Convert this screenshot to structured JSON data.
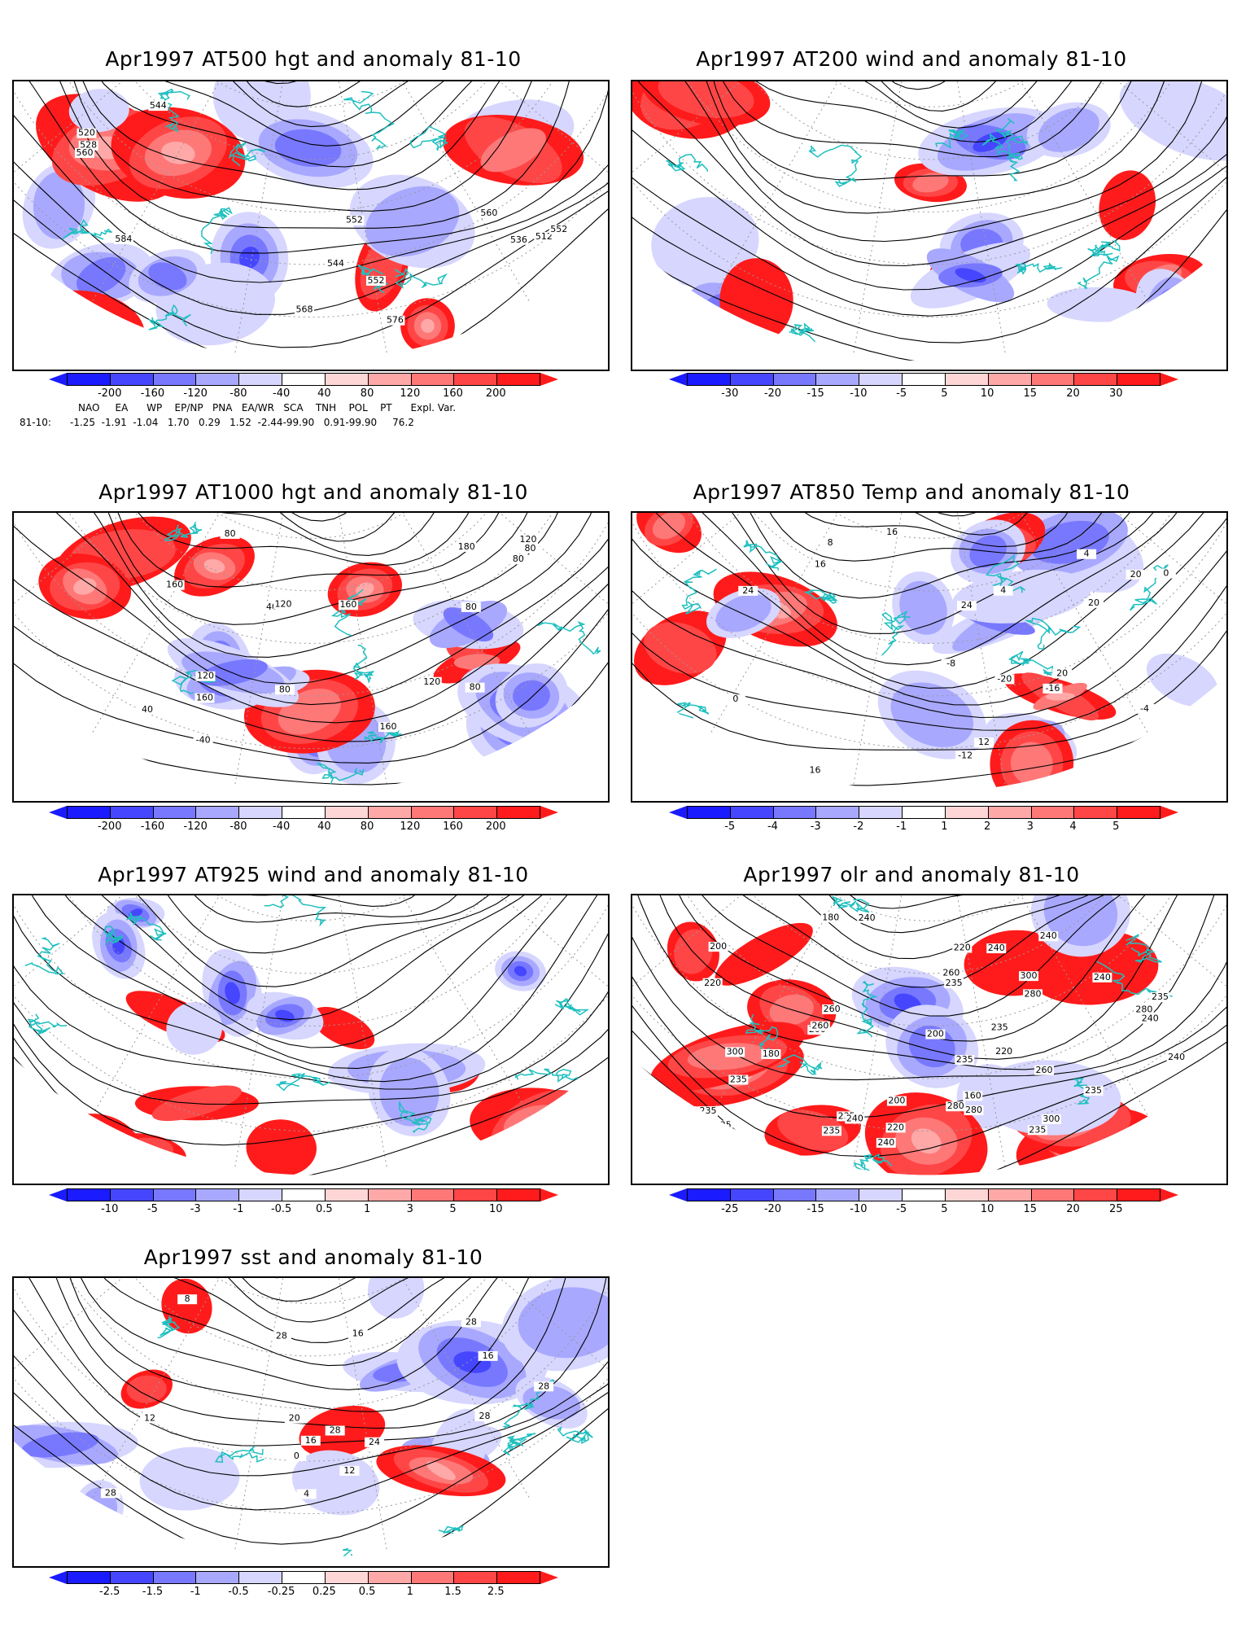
{
  "panels": [
    {
      "title": "Apr1997 AT500 hgt and anomaly 81-10",
      "contour_labels": [
        "512",
        "520",
        "528",
        "536",
        "544",
        "552",
        "560",
        "568",
        "576",
        "584",
        "544",
        "552",
        "560",
        "552"
      ],
      "colorbar": [
        "-200",
        "-160",
        "-120",
        "-80",
        "-40",
        "40",
        "80",
        "120",
        "160",
        "200"
      ]
    },
    {
      "title": "Apr1997 AT200 wind and anomaly 81-10",
      "contour_labels": [],
      "colorbar": [
        "-30",
        "-20",
        "-15",
        "-10",
        "-5",
        "5",
        "10",
        "15",
        "20",
        "30"
      ]
    },
    {
      "title": "Apr1997 AT1000 hgt and anomaly 81-10",
      "contour_labels": [
        "160",
        "180",
        "160",
        "80",
        "80",
        "120",
        "40",
        "-40",
        "80",
        "80",
        "40",
        "160",
        "120",
        "120",
        "160",
        "120",
        "80",
        "80",
        "80",
        "120"
      ],
      "colorbar": [
        "-200",
        "-160",
        "-120",
        "-80",
        "-40",
        "40",
        "80",
        "120",
        "160",
        "200"
      ]
    },
    {
      "title": "Apr1997 AT850 Temp and anomaly 81-10",
      "contour_labels": [
        "16",
        "-20",
        "-16",
        "-12",
        "-8",
        "-4",
        "0",
        "4",
        "0",
        "4",
        "8",
        "12",
        "16",
        "20",
        "20",
        "24",
        "24",
        "20",
        "16"
      ],
      "colorbar": [
        "-5",
        "-4",
        "-3",
        "-2",
        "-1",
        "1",
        "2",
        "3",
        "4",
        "5"
      ]
    },
    {
      "title": "Apr1997 AT925 wind and anomaly 81-10",
      "contour_labels": [],
      "colorbar": [
        "-10",
        "-5",
        "-3",
        "-1",
        "-0.5",
        "0.5",
        "1",
        "3",
        "5",
        "10"
      ]
    },
    {
      "title": "Apr1997 olr and anomaly 81-10",
      "contour_labels": [
        "235",
        "235",
        "235",
        "180",
        "160",
        "180",
        "220",
        "260",
        "240",
        "200",
        "220",
        "240",
        "200",
        "280",
        "240",
        "235",
        "220",
        "200",
        "260",
        "235",
        "240",
        "280",
        "300",
        "220",
        "235",
        "240",
        "235",
        "240",
        "260",
        "280",
        "300",
        "300",
        "280",
        "240",
        "235",
        "235",
        "200",
        "200",
        "240",
        "260",
        "235",
        "240",
        "235"
      ],
      "colorbar": [
        "-25",
        "-20",
        "-15",
        "-10",
        "-5",
        "5",
        "10",
        "15",
        "20",
        "25"
      ]
    },
    {
      "title": "Apr1997 sst and anomaly 81-10",
      "contour_labels": [
        "28",
        "28",
        "0",
        "4",
        "8",
        "12",
        "16",
        "16",
        "16",
        "20",
        "24",
        "28",
        "28",
        "28",
        "12",
        "28",
        "16"
      ],
      "colorbar": [
        "-2.5",
        "-1.5",
        "-1",
        "-0.5",
        "-0.25",
        "0.25",
        "0.5",
        "1",
        "1.5",
        "2.5"
      ]
    }
  ],
  "indices": {
    "header": "NAO     EA      WP    EP/NP   PNA   EA/WR   SCA    TNH    POL    PT      Expl. Var.",
    "row_label": "81-10:",
    "row_values": "-1.25  -1.91  -1.04   1.70   0.29   1.52  -2.44-99.90   0.91-99.90     76.2"
  },
  "colors": {
    "coast": "#1fbfbf",
    "blue_scale": [
      "#1b1bff",
      "#4646ff",
      "#7878ff",
      "#a8a8ff",
      "#d6d6ff"
    ],
    "red_scale": [
      "#ffd6d6",
      "#ffa8a8",
      "#ff7878",
      "#ff4646",
      "#ff1b1b"
    ],
    "contour": "#000000"
  }
}
